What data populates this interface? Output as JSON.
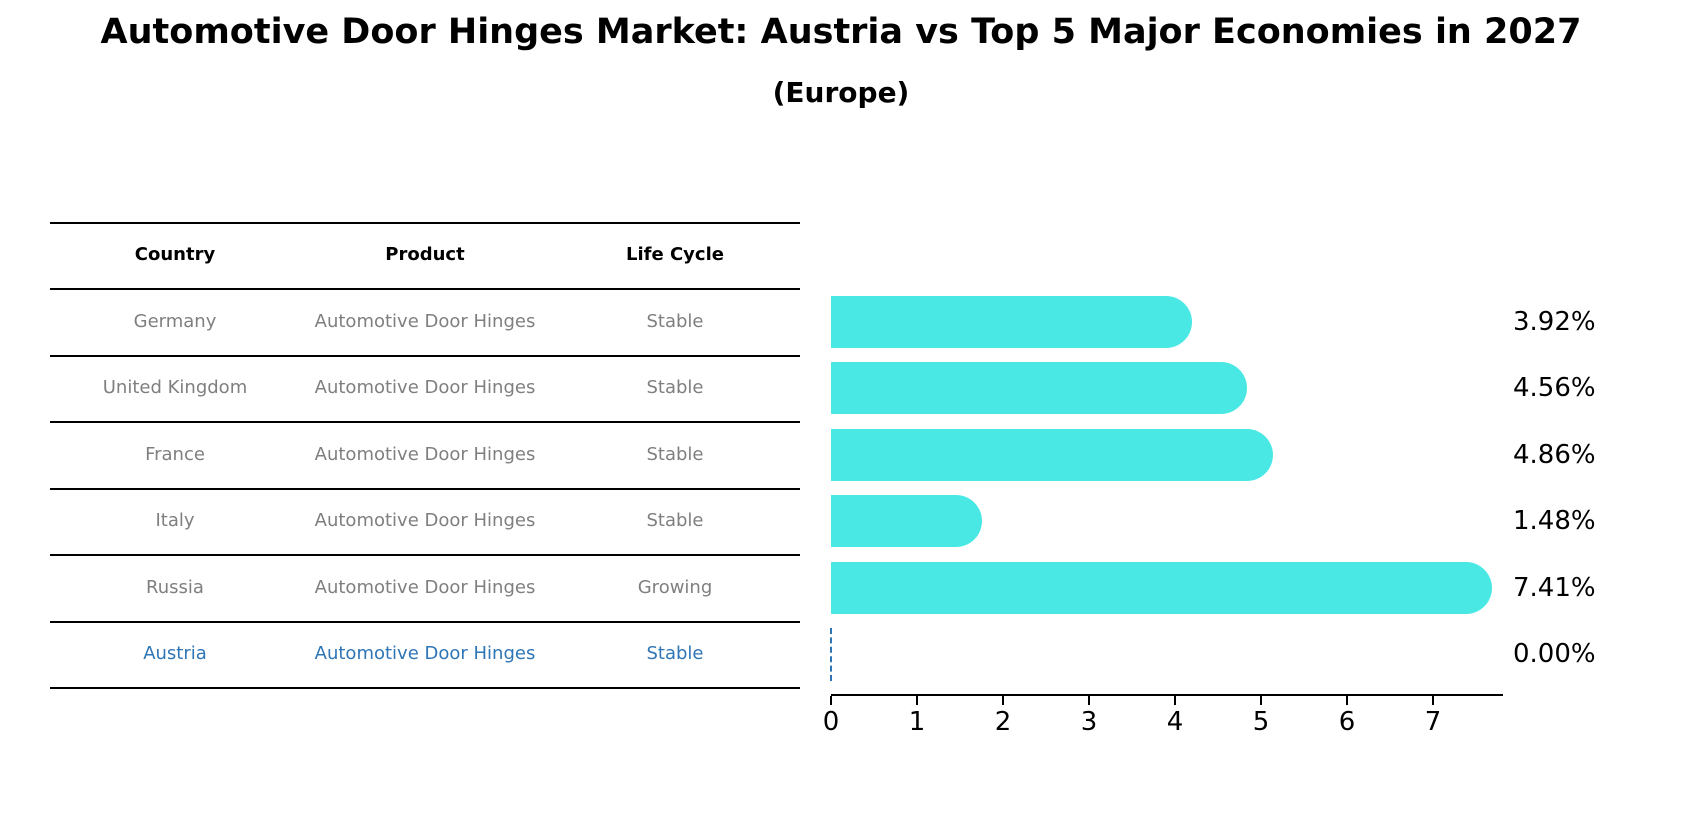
{
  "title": "Automotive Door Hinges Market: Austria vs Top 5 Major Economies in 2027",
  "subtitle": "(Europe)",
  "table": {
    "headers": [
      "Country",
      "Product",
      "Life Cycle"
    ],
    "rows": [
      {
        "country": "Germany",
        "product": "Automotive Door Hinges",
        "life_cycle": "Stable",
        "highlight": false
      },
      {
        "country": "United Kingdom",
        "product": "Automotive Door Hinges",
        "life_cycle": "Stable",
        "highlight": false
      },
      {
        "country": "France",
        "product": "Automotive Door Hinges",
        "life_cycle": "Stable",
        "highlight": false
      },
      {
        "country": "Italy",
        "product": "Automotive Door Hinges",
        "life_cycle": "Stable",
        "highlight": false
      },
      {
        "country": "Russia",
        "product": "Automotive Door Hinges",
        "life_cycle": "Growing",
        "highlight": false
      },
      {
        "country": "Austria",
        "product": "Automotive Door Hinges",
        "life_cycle": "Stable",
        "highlight": true
      }
    ]
  },
  "chart_data": {
    "type": "bar",
    "orientation": "horizontal",
    "title": "Automotive Door Hinges Market: Austria vs Top 5 Major Economies in 2027 (Europe)",
    "categories": [
      "Germany",
      "United Kingdom",
      "France",
      "Italy",
      "Russia",
      "Austria"
    ],
    "values": [
      3.92,
      4.56,
      4.86,
      1.48,
      7.41,
      0.0
    ],
    "value_labels": [
      "3.92%",
      "4.56%",
      "4.86%",
      "1.48%",
      "7.41%",
      "0.00%"
    ],
    "xticks": [
      "0",
      "1",
      "2",
      "3",
      "4",
      "5",
      "6",
      "7"
    ],
    "xlim": [
      0,
      7.8
    ],
    "grid": false,
    "legend_position": "none",
    "bar_color": "#4ae8e4",
    "highlight_color": "#2e75b6",
    "text_color_rows": "#7f7f7f",
    "text_color_labels": "#000000"
  }
}
